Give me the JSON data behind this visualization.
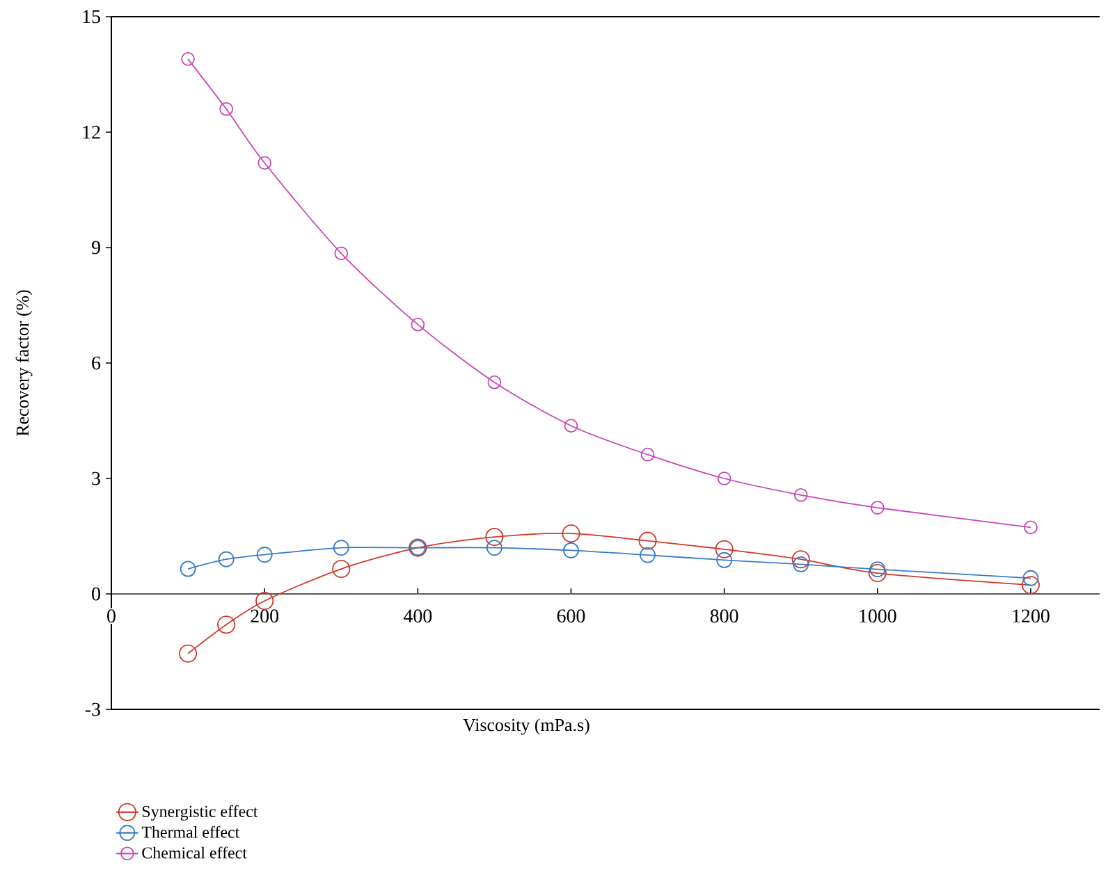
{
  "chart_data": {
    "type": "line",
    "xlabel": "Viscosity (mPa.s)",
    "ylabel": "Recovery factor (%)",
    "x": [
      100,
      150,
      200,
      300,
      400,
      500,
      600,
      700,
      800,
      900,
      1000,
      1200
    ],
    "series": [
      {
        "name": "Synergistic effect",
        "color": "#d03a2a",
        "values": [
          -1.55,
          -0.8,
          -0.18,
          0.65,
          1.2,
          1.48,
          1.57,
          1.38,
          1.16,
          0.9,
          0.54,
          0.23
        ]
      },
      {
        "name": "Thermal effect",
        "color": "#3a7cc8",
        "values": [
          0.65,
          0.9,
          1.02,
          1.2,
          1.2,
          1.2,
          1.13,
          1.01,
          0.88,
          0.77,
          0.64,
          0.41
        ]
      },
      {
        "name": "Chemical effect",
        "color": "#c845b8",
        "values": [
          13.9,
          12.6,
          11.2,
          8.85,
          7.0,
          5.5,
          4.37,
          3.62,
          3.0,
          2.57,
          2.24,
          1.73
        ]
      }
    ],
    "xlim": [
      0,
      1290
    ],
    "xticks": [
      0,
      200,
      400,
      600,
      800,
      1000,
      1200
    ],
    "ylim": [
      -3,
      15
    ],
    "yticks": [
      -3,
      0,
      3,
      6,
      9,
      12,
      15
    ],
    "grid": false,
    "legend": "bottom",
    "marker": "circle",
    "line_style": "solid"
  }
}
